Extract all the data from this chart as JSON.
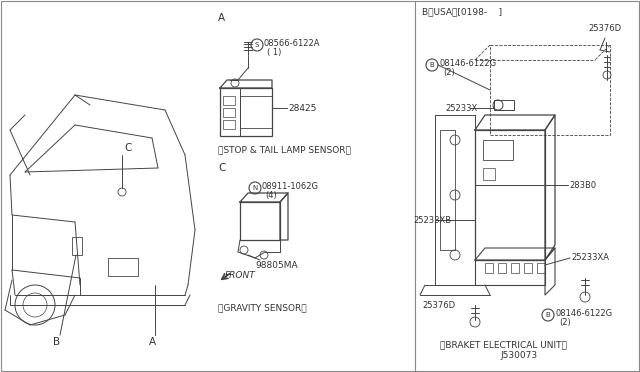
{
  "bg_color": "white",
  "line_color": "#444444",
  "text_color": "#333333",
  "border_color": "#aaaaaa",
  "fig_w": 6.4,
  "fig_h": 3.72,
  "dpi": 100,
  "labels": {
    "section_a": "A",
    "section_c": "C",
    "section_b": "B〈USA〉[0198-    ]",
    "part_08566": "08566-6122A",
    "part_08566_qty": "( 1)",
    "part_s": "S",
    "part_28425": "28425",
    "caption_stop": "〈STOP & TAIL LAMP SENSOR〉",
    "part_n": "N",
    "part_08911": "08911-1062G",
    "part_08911_qty": "(4)",
    "part_98805": "98805MA",
    "front": "FRONT",
    "caption_gravity": "〈GRAVITY SENSOR〉",
    "part_25376D_top": "25376D",
    "part_b": "B",
    "part_08146_top": "08146-6122G",
    "part_08146_top_qty": "(2)",
    "part_25233X": "25233X",
    "part_283B0": "283B0",
    "part_25233XB": "25233XB",
    "part_25233XA": "25233XA",
    "part_08146_bot": "08146-6122G",
    "part_08146_bot_qty": "(2)",
    "part_25376D_bot": "25376D",
    "caption_bracket": "〈BRAKET ELECTRICAL UNIT〉",
    "diagram_id": "J530073"
  }
}
